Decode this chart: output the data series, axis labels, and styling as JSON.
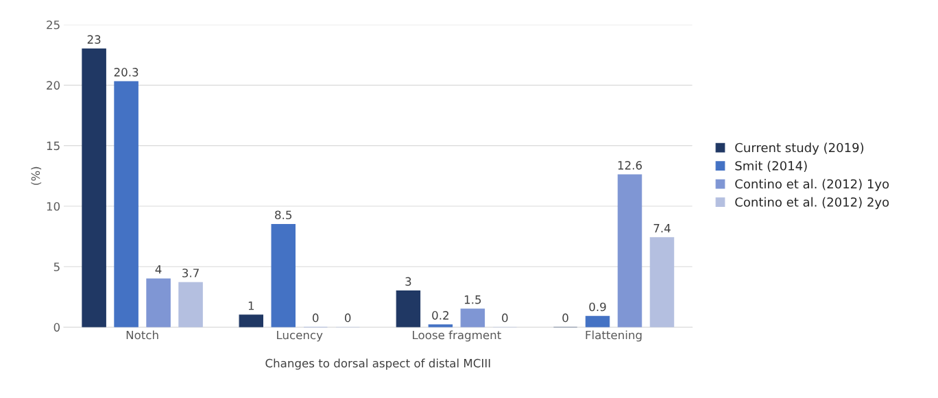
{
  "chart_data": {
    "type": "bar",
    "categories": [
      "Notch",
      "Lucency",
      "Loose fragment",
      "Flattening"
    ],
    "xlabel": "Changes to dorsal aspect of distal MCIII",
    "ylabel": "(%)",
    "series": [
      {
        "name": "Current study (2019)",
        "color": "#203864",
        "values": [
          23,
          1,
          3,
          0
        ]
      },
      {
        "name": "Smit (2014)",
        "color": "#4472c4",
        "values": [
          20.3,
          8.5,
          0.2,
          0.9
        ]
      },
      {
        "name": "Contino et al. (2012) 1yo",
        "color": "#7f96d4",
        "values": [
          4,
          0,
          1.5,
          12.6
        ]
      },
      {
        "name": "Contino et al. (2012) 2yo",
        "color": "#b4bfe0",
        "values": [
          3.7,
          0,
          0,
          7.4
        ]
      }
    ],
    "ylim": [
      0,
      25
    ],
    "yticks": [
      0,
      5,
      10,
      15,
      20,
      25
    ],
    "grid": "y",
    "legend": "right",
    "data_labels": true
  }
}
